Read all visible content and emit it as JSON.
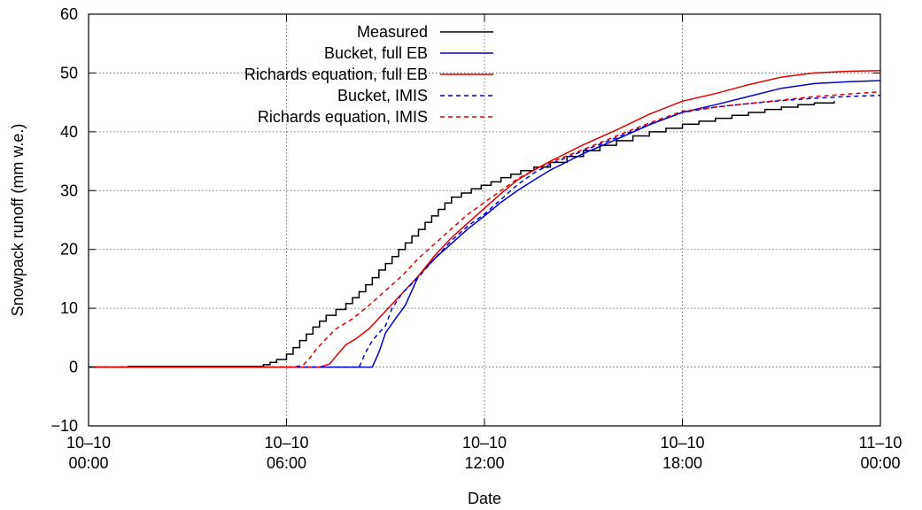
{
  "chart_data": {
    "type": "line",
    "xlabel": "Date",
    "ylabel": "Snowpack runoff (mm w.e.)",
    "xlim": [
      0,
      24
    ],
    "ylim": [
      -10,
      60
    ],
    "grid": true,
    "legend_position": "top-center",
    "x_ticks": [
      {
        "value": 0,
        "line1": "10–10",
        "line2": "00:00"
      },
      {
        "value": 6,
        "line1": "10–10",
        "line2": "06:00"
      },
      {
        "value": 12,
        "line1": "10–10",
        "line2": "12:00"
      },
      {
        "value": 18,
        "line1": "10–10",
        "line2": "18:00"
      },
      {
        "value": 24,
        "line1": "11–10",
        "line2": "00:00"
      }
    ],
    "y_ticks": [
      {
        "value": -10,
        "label": "−10"
      },
      {
        "value": 0,
        "label": "0"
      },
      {
        "value": 10,
        "label": "10"
      },
      {
        "value": 20,
        "label": "20"
      },
      {
        "value": 30,
        "label": "30"
      },
      {
        "value": 40,
        "label": "40"
      },
      {
        "value": 50,
        "label": "50"
      },
      {
        "value": 60,
        "label": "60"
      }
    ],
    "series": [
      {
        "name": "Measured",
        "color": "#000000",
        "dash": "solid",
        "step": true,
        "points": [
          [
            0,
            0
          ],
          [
            1,
            0
          ],
          [
            1.2,
            0.1
          ],
          [
            5,
            0.1
          ],
          [
            5.3,
            0.4
          ],
          [
            5.5,
            0.8
          ],
          [
            5.7,
            1.3
          ],
          [
            6.0,
            2.2
          ],
          [
            6.2,
            3.3
          ],
          [
            6.4,
            4.5
          ],
          [
            6.6,
            5.6
          ],
          [
            6.8,
            6.8
          ],
          [
            7.0,
            7.8
          ],
          [
            7.2,
            8.8
          ],
          [
            7.5,
            9.8
          ],
          [
            7.8,
            10.8
          ],
          [
            8.0,
            11.8
          ],
          [
            8.2,
            12.8
          ],
          [
            8.4,
            14.0
          ],
          [
            8.6,
            15.2
          ],
          [
            8.8,
            16.5
          ],
          [
            9.0,
            17.6
          ],
          [
            9.2,
            18.8
          ],
          [
            9.4,
            20.0
          ],
          [
            9.6,
            21.1
          ],
          [
            9.8,
            22.3
          ],
          [
            10.0,
            23.4
          ],
          [
            10.2,
            24.6
          ],
          [
            10.4,
            25.7
          ],
          [
            10.6,
            26.8
          ],
          [
            10.8,
            27.9
          ],
          [
            11.0,
            28.9
          ],
          [
            11.3,
            29.6
          ],
          [
            11.6,
            30.3
          ],
          [
            11.9,
            30.9
          ],
          [
            12.2,
            31.5
          ],
          [
            12.5,
            32.2
          ],
          [
            12.8,
            32.8
          ],
          [
            13.1,
            33.4
          ],
          [
            13.5,
            34.0
          ],
          [
            14.0,
            34.8
          ],
          [
            14.5,
            35.8
          ],
          [
            15.0,
            36.8
          ],
          [
            15.5,
            37.7
          ],
          [
            16.0,
            38.5
          ],
          [
            16.5,
            39.3
          ],
          [
            17.0,
            40.0
          ],
          [
            17.5,
            40.6
          ],
          [
            18.0,
            41.3
          ],
          [
            18.5,
            41.8
          ],
          [
            19.0,
            42.3
          ],
          [
            19.5,
            42.8
          ],
          [
            20.0,
            43.3
          ],
          [
            20.5,
            43.8
          ],
          [
            21.0,
            44.2
          ],
          [
            21.5,
            44.6
          ],
          [
            22.0,
            44.9
          ],
          [
            22.6,
            45.2
          ]
        ]
      },
      {
        "name": "Bucket, full EB",
        "color": "#0000cc",
        "dash": "solid",
        "step": false,
        "points": [
          [
            0,
            0
          ],
          [
            8.6,
            0
          ],
          [
            8.8,
            2.5
          ],
          [
            9.0,
            5.8
          ],
          [
            9.3,
            8.2
          ],
          [
            9.6,
            10.5
          ],
          [
            10.0,
            15.5
          ],
          [
            10.5,
            18.5
          ],
          [
            11.0,
            21.0
          ],
          [
            11.5,
            23.5
          ],
          [
            12.0,
            25.7
          ],
          [
            12.5,
            28.0
          ],
          [
            13.0,
            30.0
          ],
          [
            13.5,
            31.8
          ],
          [
            14.0,
            33.5
          ],
          [
            15.0,
            36.3
          ],
          [
            16.0,
            38.7
          ],
          [
            17.0,
            41.2
          ],
          [
            18.0,
            43.3
          ],
          [
            19.0,
            44.6
          ],
          [
            20.0,
            46.0
          ],
          [
            21.0,
            47.4
          ],
          [
            22.0,
            48.2
          ],
          [
            23.0,
            48.5
          ],
          [
            24.0,
            48.7
          ]
        ]
      },
      {
        "name": "Richards equation, full EB",
        "color": "#dd0000",
        "dash": "solid",
        "step": false,
        "points": [
          [
            0,
            0
          ],
          [
            7.0,
            0
          ],
          [
            7.3,
            0.5
          ],
          [
            7.6,
            2.5
          ],
          [
            7.8,
            3.8
          ],
          [
            8.1,
            4.8
          ],
          [
            8.5,
            6.5
          ],
          [
            9.0,
            9.5
          ],
          [
            9.5,
            12.5
          ],
          [
            10.0,
            15.5
          ],
          [
            10.5,
            19.0
          ],
          [
            11.0,
            22.0
          ],
          [
            11.5,
            24.5
          ],
          [
            12.0,
            27.0
          ],
          [
            12.5,
            29.5
          ],
          [
            13.0,
            31.8
          ],
          [
            13.5,
            33.5
          ],
          [
            14.0,
            35.0
          ],
          [
            15.0,
            37.8
          ],
          [
            16.0,
            40.3
          ],
          [
            17.0,
            43.0
          ],
          [
            18.0,
            45.2
          ],
          [
            19.0,
            46.5
          ],
          [
            20.0,
            48.0
          ],
          [
            21.0,
            49.3
          ],
          [
            22.0,
            50.0
          ],
          [
            23.0,
            50.3
          ],
          [
            24.0,
            50.4
          ]
        ]
      },
      {
        "name": "Bucket, IMIS",
        "color": "#0000cc",
        "dash": "dashed",
        "step": false,
        "points": [
          [
            0,
            0
          ],
          [
            8.2,
            0
          ],
          [
            8.4,
            2.5
          ],
          [
            8.6,
            4.5
          ],
          [
            8.8,
            5.8
          ],
          [
            9.0,
            7.0
          ],
          [
            9.2,
            10.0
          ],
          [
            9.5,
            12.5
          ],
          [
            10.0,
            15.3
          ],
          [
            10.5,
            18.5
          ],
          [
            11.0,
            21.5
          ],
          [
            11.5,
            24.0
          ],
          [
            12.0,
            26.0
          ],
          [
            12.5,
            28.5
          ],
          [
            13.0,
            31.0
          ],
          [
            13.5,
            33.0
          ],
          [
            14.0,
            34.5
          ],
          [
            15.0,
            36.8
          ],
          [
            16.0,
            39.0
          ],
          [
            17.0,
            41.3
          ],
          [
            18.0,
            43.3
          ],
          [
            19.0,
            44.2
          ],
          [
            20.0,
            44.8
          ],
          [
            21.0,
            45.3
          ],
          [
            22.0,
            45.7
          ],
          [
            23.0,
            46.0
          ],
          [
            24.0,
            46.2
          ]
        ]
      },
      {
        "name": "Richards equation, IMIS",
        "color": "#dd0000",
        "dash": "dashed",
        "step": false,
        "points": [
          [
            0,
            0
          ],
          [
            6.2,
            0
          ],
          [
            6.5,
            0.3
          ],
          [
            6.7,
            1.5
          ],
          [
            6.9,
            3.0
          ],
          [
            7.2,
            4.8
          ],
          [
            7.5,
            6.5
          ],
          [
            8.0,
            8.2
          ],
          [
            8.5,
            10.5
          ],
          [
            9.0,
            13.0
          ],
          [
            9.5,
            15.5
          ],
          [
            10.0,
            18.5
          ],
          [
            10.5,
            21.0
          ],
          [
            11.0,
            23.5
          ],
          [
            11.5,
            26.0
          ],
          [
            12.0,
            28.0
          ],
          [
            12.5,
            30.0
          ],
          [
            13.0,
            32.0
          ],
          [
            13.5,
            33.5
          ],
          [
            14.0,
            34.8
          ],
          [
            15.0,
            37.0
          ],
          [
            16.0,
            39.3
          ],
          [
            17.0,
            41.5
          ],
          [
            18.0,
            43.5
          ],
          [
            19.0,
            44.2
          ],
          [
            20.0,
            44.8
          ],
          [
            21.0,
            45.4
          ],
          [
            22.0,
            46.0
          ],
          [
            23.0,
            46.4
          ],
          [
            24.0,
            46.8
          ]
        ]
      }
    ]
  }
}
